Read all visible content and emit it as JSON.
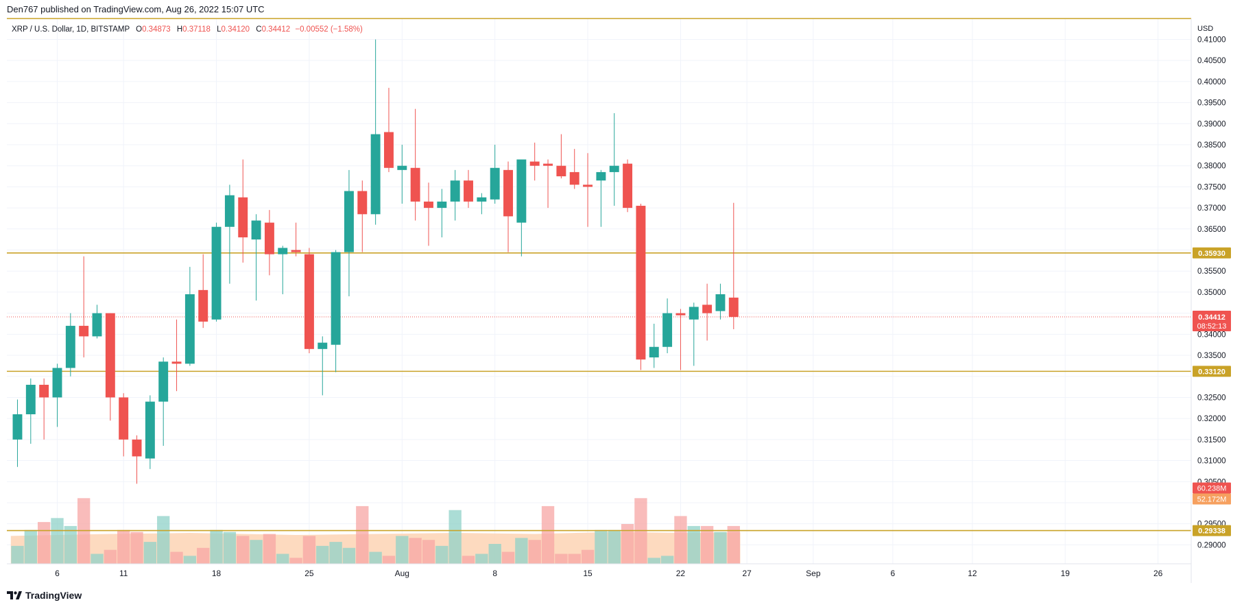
{
  "header": {
    "published": "Den767 published on TradingView.com, Aug 26, 2022 15:07 UTC"
  },
  "legend": {
    "symbol": "XRP / U.S. Dollar, 1D, BITSTAMP",
    "o_label": "O",
    "o_value": "0.34873",
    "h_label": "H",
    "h_value": "0.37118",
    "l_label": "L",
    "l_value": "0.34120",
    "c_label": "C",
    "c_value": "0.34412",
    "change": "−0.00552 (−1.58%)"
  },
  "footer": {
    "brand": "TradingView",
    "logo_icon": "tradingview-logo-icon"
  },
  "colors": {
    "up": "#26a69a",
    "down": "#ef5350",
    "up_volume": "#8fd1c8",
    "down_volume": "#f7a6a4",
    "volume_ma_fill": "#fdd3b4",
    "hline": "#c9a227",
    "last_price": "#ef5350"
  },
  "chart_data": {
    "type": "candlestick",
    "currency": "USD",
    "price_ticks": [
      "0.41000",
      "0.40500",
      "0.40000",
      "0.39500",
      "0.39000",
      "0.38500",
      "0.38000",
      "0.37500",
      "0.37000",
      "0.36500",
      "0.35500",
      "0.35000",
      "0.34000",
      "0.33500",
      "0.32500",
      "0.32000",
      "0.31500",
      "0.31000",
      "0.30500",
      "0.29500",
      "0.29000"
    ],
    "ylim": [
      0.2855,
      0.4148
    ],
    "x_ticks": [
      {
        "day": 6,
        "label": "6"
      },
      {
        "day": 11,
        "label": "11"
      },
      {
        "day": 18,
        "label": "18"
      },
      {
        "day": 25,
        "label": "25"
      },
      {
        "day": 32,
        "label": "Aug"
      },
      {
        "day": 39,
        "label": "8"
      },
      {
        "day": 46,
        "label": "15"
      },
      {
        "day": 53,
        "label": "22"
      },
      {
        "day": 58,
        "label": "27"
      },
      {
        "day": 63,
        "label": "Sep"
      },
      {
        "day": 69,
        "label": "6"
      },
      {
        "day": 75,
        "label": "12"
      },
      {
        "day": 82,
        "label": "19"
      },
      {
        "day": 89,
        "label": "26"
      }
    ],
    "xlim_days": [
      2.2,
      91.5
    ],
    "horizontal_lines": [
      {
        "value": 0.3593,
        "label": "0.35930"
      },
      {
        "value": 0.3312,
        "label": "0.33120"
      },
      {
        "value": 0.29338,
        "label": "0.29338"
      }
    ],
    "last_price": {
      "value": 0.34412,
      "label": "0.34412",
      "countdown": "08:52:13"
    },
    "volume_labels": [
      {
        "label": "60.238M",
        "color": "#ef5350"
      },
      {
        "label": "52.172M",
        "color": "#f6a05f"
      }
    ],
    "volume_max": 1.0,
    "candles": [
      {
        "day": 3,
        "o": 0.315,
        "h": 0.3245,
        "l": 0.3085,
        "c": 0.321,
        "v": 0.09
      },
      {
        "day": 4,
        "o": 0.321,
        "h": 0.3295,
        "l": 0.314,
        "c": 0.328,
        "v": 0.17
      },
      {
        "day": 5,
        "o": 0.328,
        "h": 0.3295,
        "l": 0.315,
        "c": 0.325,
        "v": 0.21
      },
      {
        "day": 6,
        "o": 0.325,
        "h": 0.333,
        "l": 0.318,
        "c": 0.332,
        "v": 0.23
      },
      {
        "day": 7,
        "o": 0.332,
        "h": 0.345,
        "l": 0.33,
        "c": 0.342,
        "v": 0.19
      },
      {
        "day": 8,
        "o": 0.342,
        "h": 0.3585,
        "l": 0.3345,
        "c": 0.3395,
        "v": 0.33
      },
      {
        "day": 9,
        "o": 0.3395,
        "h": 0.347,
        "l": 0.339,
        "c": 0.345,
        "v": 0.05
      },
      {
        "day": 10,
        "o": 0.345,
        "h": 0.345,
        "l": 0.3195,
        "c": 0.325,
        "v": 0.07
      },
      {
        "day": 11,
        "o": 0.325,
        "h": 0.326,
        "l": 0.311,
        "c": 0.315,
        "v": 0.17
      },
      {
        "day": 12,
        "o": 0.315,
        "h": 0.316,
        "l": 0.3045,
        "c": 0.311,
        "v": 0.16
      },
      {
        "day": 13,
        "o": 0.3105,
        "h": 0.3255,
        "l": 0.308,
        "c": 0.324,
        "v": 0.11
      },
      {
        "day": 14,
        "o": 0.324,
        "h": 0.3345,
        "l": 0.3135,
        "c": 0.3335,
        "v": 0.24
      },
      {
        "day": 15,
        "o": 0.3335,
        "h": 0.3435,
        "l": 0.3265,
        "c": 0.333,
        "v": 0.06
      },
      {
        "day": 16,
        "o": 0.333,
        "h": 0.356,
        "l": 0.3325,
        "c": 0.3495,
        "v": 0.04
      },
      {
        "day": 17,
        "o": 0.3505,
        "h": 0.359,
        "l": 0.3415,
        "c": 0.343,
        "v": 0.08
      },
      {
        "day": 18,
        "o": 0.3435,
        "h": 0.3665,
        "l": 0.343,
        "c": 0.3655,
        "v": 0.17
      },
      {
        "day": 19,
        "o": 0.3655,
        "h": 0.3755,
        "l": 0.352,
        "c": 0.373,
        "v": 0.16
      },
      {
        "day": 20,
        "o": 0.3725,
        "h": 0.3815,
        "l": 0.357,
        "c": 0.363,
        "v": 0.14
      },
      {
        "day": 21,
        "o": 0.3625,
        "h": 0.3685,
        "l": 0.348,
        "c": 0.367,
        "v": 0.12
      },
      {
        "day": 22,
        "o": 0.3665,
        "h": 0.3695,
        "l": 0.354,
        "c": 0.359,
        "v": 0.15
      },
      {
        "day": 23,
        "o": 0.359,
        "h": 0.361,
        "l": 0.3495,
        "c": 0.3605,
        "v": 0.05
      },
      {
        "day": 24,
        "o": 0.36,
        "h": 0.3665,
        "l": 0.3585,
        "c": 0.3595,
        "v": 0.03
      },
      {
        "day": 25,
        "o": 0.359,
        "h": 0.3605,
        "l": 0.3355,
        "c": 0.3365,
        "v": 0.14
      },
      {
        "day": 26,
        "o": 0.3365,
        "h": 0.3395,
        "l": 0.3255,
        "c": 0.338,
        "v": 0.09
      },
      {
        "day": 27,
        "o": 0.3375,
        "h": 0.36,
        "l": 0.331,
        "c": 0.3595,
        "v": 0.11
      },
      {
        "day": 28,
        "o": 0.3595,
        "h": 0.379,
        "l": 0.349,
        "c": 0.374,
        "v": 0.08
      },
      {
        "day": 29,
        "o": 0.374,
        "h": 0.3765,
        "l": 0.3595,
        "c": 0.3685,
        "v": 0.29
      },
      {
        "day": 30,
        "o": 0.3685,
        "h": 0.41,
        "l": 0.366,
        "c": 0.3875,
        "v": 0.06
      },
      {
        "day": 31,
        "o": 0.388,
        "h": 0.3985,
        "l": 0.3785,
        "c": 0.3795,
        "v": 0.04
      },
      {
        "day": 32,
        "o": 0.379,
        "h": 0.385,
        "l": 0.371,
        "c": 0.38,
        "v": 0.14
      },
      {
        "day": 33,
        "o": 0.3795,
        "h": 0.3935,
        "l": 0.367,
        "c": 0.3715,
        "v": 0.13
      },
      {
        "day": 34,
        "o": 0.3715,
        "h": 0.376,
        "l": 0.361,
        "c": 0.37,
        "v": 0.12
      },
      {
        "day": 35,
        "o": 0.37,
        "h": 0.3745,
        "l": 0.363,
        "c": 0.3715,
        "v": 0.09
      },
      {
        "day": 36,
        "o": 0.3715,
        "h": 0.379,
        "l": 0.367,
        "c": 0.3765,
        "v": 0.27
      },
      {
        "day": 37,
        "o": 0.3765,
        "h": 0.379,
        "l": 0.37,
        "c": 0.3715,
        "v": 0.04
      },
      {
        "day": 38,
        "o": 0.3715,
        "h": 0.3735,
        "l": 0.3685,
        "c": 0.3725,
        "v": 0.05
      },
      {
        "day": 39,
        "o": 0.372,
        "h": 0.385,
        "l": 0.371,
        "c": 0.3795,
        "v": 0.1
      },
      {
        "day": 40,
        "o": 0.379,
        "h": 0.381,
        "l": 0.3595,
        "c": 0.368,
        "v": 0.06
      },
      {
        "day": 41,
        "o": 0.3665,
        "h": 0.3815,
        "l": 0.3585,
        "c": 0.3815,
        "v": 0.13
      },
      {
        "day": 42,
        "o": 0.381,
        "h": 0.3855,
        "l": 0.3765,
        "c": 0.38,
        "v": 0.12
      },
      {
        "day": 43,
        "o": 0.3805,
        "h": 0.3815,
        "l": 0.37,
        "c": 0.38,
        "v": 0.29
      },
      {
        "day": 44,
        "o": 0.38,
        "h": 0.3875,
        "l": 0.377,
        "c": 0.3775,
        "v": 0.05
      },
      {
        "day": 45,
        "o": 0.3785,
        "h": 0.384,
        "l": 0.3745,
        "c": 0.3755,
        "v": 0.05
      },
      {
        "day": 46,
        "o": 0.3755,
        "h": 0.383,
        "l": 0.3655,
        "c": 0.375,
        "v": 0.07
      },
      {
        "day": 47,
        "o": 0.3765,
        "h": 0.379,
        "l": 0.3655,
        "c": 0.3785,
        "v": 0.17
      },
      {
        "day": 48,
        "o": 0.3785,
        "h": 0.3925,
        "l": 0.3705,
        "c": 0.38,
        "v": 0.17
      },
      {
        "day": 49,
        "o": 0.3805,
        "h": 0.3815,
        "l": 0.369,
        "c": 0.37,
        "v": 0.2
      },
      {
        "day": 50,
        "o": 0.3705,
        "h": 0.371,
        "l": 0.3315,
        "c": 0.334,
        "v": 0.33
      },
      {
        "day": 51,
        "o": 0.3345,
        "h": 0.3425,
        "l": 0.332,
        "c": 0.337,
        "v": 0.03
      },
      {
        "day": 52,
        "o": 0.337,
        "h": 0.3485,
        "l": 0.3355,
        "c": 0.345,
        "v": 0.04
      },
      {
        "day": 53,
        "o": 0.345,
        "h": 0.346,
        "l": 0.3315,
        "c": 0.3445,
        "v": 0.24
      },
      {
        "day": 54,
        "o": 0.3435,
        "h": 0.3475,
        "l": 0.3325,
        "c": 0.3465,
        "v": 0.19
      },
      {
        "day": 55,
        "o": 0.347,
        "h": 0.352,
        "l": 0.3385,
        "c": 0.345,
        "v": 0.19
      },
      {
        "day": 56,
        "o": 0.3455,
        "h": 0.352,
        "l": 0.3435,
        "c": 0.3495,
        "v": 0.16
      },
      {
        "day": 57,
        "o": 0.3487,
        "h": 0.3712,
        "l": 0.3412,
        "c": 0.3441,
        "v": 0.19
      }
    ],
    "volume_ma": [
      {
        "day": 3,
        "v": 0.14
      },
      {
        "day": 10,
        "v": 0.15
      },
      {
        "day": 16,
        "v": 0.155
      },
      {
        "day": 24,
        "v": 0.145
      },
      {
        "day": 30,
        "v": 0.15
      },
      {
        "day": 36,
        "v": 0.155
      },
      {
        "day": 42,
        "v": 0.15
      },
      {
        "day": 48,
        "v": 0.16
      },
      {
        "day": 53,
        "v": 0.155
      },
      {
        "day": 57,
        "v": 0.158
      }
    ]
  }
}
